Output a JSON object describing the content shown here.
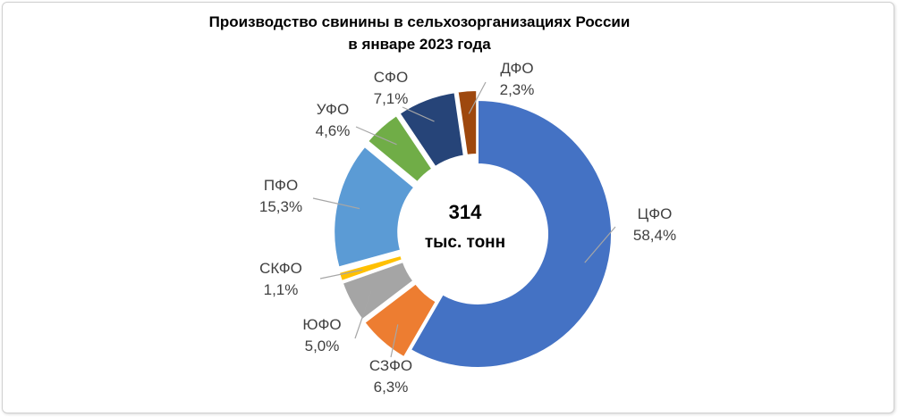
{
  "chart_data": {
    "type": "pie",
    "subtype": "doughnut",
    "title": "Производство свинины в сельхозорганизациях России",
    "subtitle": "в январе 2023 года",
    "center_text": {
      "value": "314",
      "unit": "тыс. тонн"
    },
    "slices": [
      {
        "label": "ЦФО",
        "value": 58.4,
        "value_label": "58,4%",
        "color": "#4472C4",
        "exploded": false
      },
      {
        "label": "СЗФО",
        "value": 6.3,
        "value_label": "6,3%",
        "color": "#ED7D31",
        "exploded": true
      },
      {
        "label": "ЮФО",
        "value": 5.0,
        "value_label": "5,0%",
        "color": "#A5A5A5",
        "exploded": true
      },
      {
        "label": "СКФО",
        "value": 1.1,
        "value_label": "1,1%",
        "color": "#FFC000",
        "exploded": true
      },
      {
        "label": "ПФО",
        "value": 15.3,
        "value_label": "15,3%",
        "color": "#5B9BD5",
        "exploded": true
      },
      {
        "label": "УФО",
        "value": 4.6,
        "value_label": "4,6%",
        "color": "#70AD47",
        "exploded": true
      },
      {
        "label": "СФО",
        "value": 7.1,
        "value_label": "7,1%",
        "color": "#264478",
        "exploded": true
      },
      {
        "label": "ДФО",
        "value": 2.3,
        "value_label": "2,3%",
        "color": "#9E480E",
        "exploded": true
      }
    ],
    "start_angle_deg": 0,
    "direction": "clockwise",
    "legend": "none",
    "leader_line_color": "#A6A6A6"
  }
}
